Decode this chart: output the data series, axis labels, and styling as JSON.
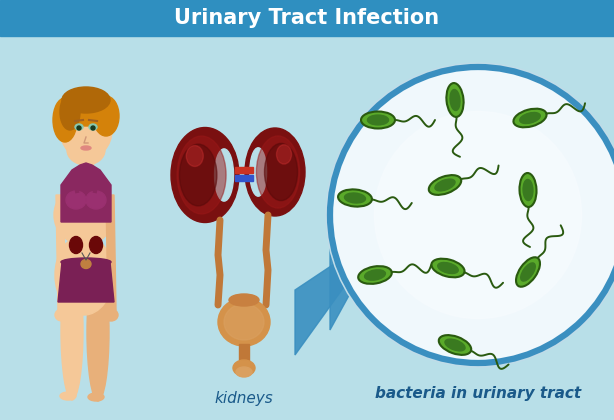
{
  "title": "Urinary Tract Infection",
  "title_bar_color": "#2f8fc0",
  "bg_color": "#b8dfe8",
  "title_font_color": "#ffffff",
  "label_kidneys": "kidneys",
  "label_bacteria": "bacteria in urinary tract",
  "label_font_color": "#1a5a8a",
  "bacteria_body_color": "#4d9a28",
  "bacteria_body_color2": "#5aaa2a",
  "bacteria_outline_color": "#2a5a10",
  "bacteria_inner_color": "#3a7a20",
  "circle_bg_inner": "#e8f4f8",
  "circle_bg_outer": "#c8e8f0",
  "circle_border": "#3a8fc0",
  "kidney_color": "#7a1010",
  "kidney_highlight": "#5a0808",
  "bladder_color": "#d4924a",
  "tube_color": "#c07838",
  "skin_color": "#f5c898",
  "skin_shadow": "#e8b07a",
  "hair_color": "#d4820a",
  "hair_dark": "#b06808",
  "top_color": "#8a2860",
  "bottom_color": "#7a2055",
  "arrow_color": "#3a8fc0",
  "vessel_red": "#cc3322",
  "vessel_blue": "#3355cc"
}
